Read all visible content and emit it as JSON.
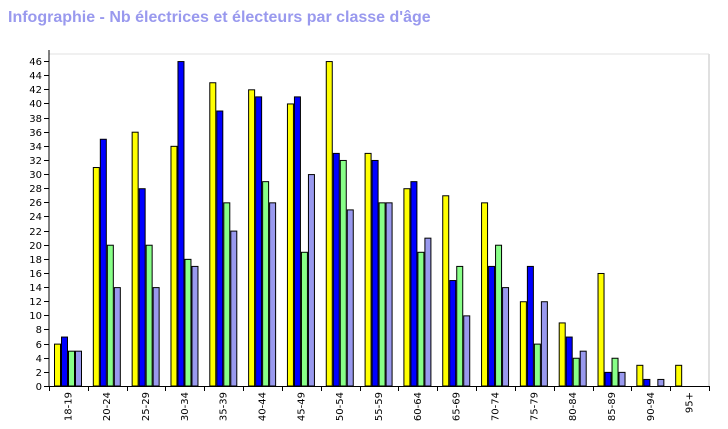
{
  "title": "Infographie - Nb électrices et électeurs par classe d'âge",
  "colors": {
    "title": "#9999ee",
    "series": [
      "#ffff00",
      "#0000ff",
      "#88ff88",
      "#9999ee"
    ]
  },
  "chart_data": {
    "type": "bar",
    "title": "Infographie - Nb électrices et électeurs par classe d'âge",
    "xlabel": "",
    "ylabel": "",
    "ylim": [
      0,
      47
    ],
    "yticks": [
      0,
      2,
      4,
      6,
      8,
      10,
      12,
      14,
      16,
      18,
      20,
      22,
      24,
      26,
      28,
      30,
      32,
      34,
      36,
      38,
      40,
      42,
      44,
      46
    ],
    "grid": false,
    "legend": "none",
    "categories": [
      "18-19",
      "20-24",
      "25-29",
      "30-34",
      "35-39",
      "40-44",
      "45-49",
      "50-54",
      "55-59",
      "60-64",
      "65-69",
      "70-74",
      "75-79",
      "80-84",
      "85-89",
      "90-94",
      "95+"
    ],
    "series": [
      {
        "values": [
          6,
          31,
          36,
          34,
          43,
          42,
          40,
          46,
          33,
          28,
          27,
          26,
          12,
          9,
          16,
          3,
          3
        ]
      },
      {
        "values": [
          7,
          35,
          28,
          46,
          39,
          41,
          41,
          33,
          32,
          29,
          15,
          17,
          17,
          7,
          2,
          1,
          0
        ]
      },
      {
        "values": [
          5,
          20,
          20,
          18,
          26,
          29,
          19,
          32,
          26,
          19,
          17,
          20,
          6,
          4,
          4,
          0,
          0
        ]
      },
      {
        "values": [
          5,
          14,
          14,
          17,
          22,
          26,
          30,
          25,
          26,
          21,
          10,
          14,
          12,
          5,
          2,
          1,
          0
        ]
      }
    ]
  }
}
